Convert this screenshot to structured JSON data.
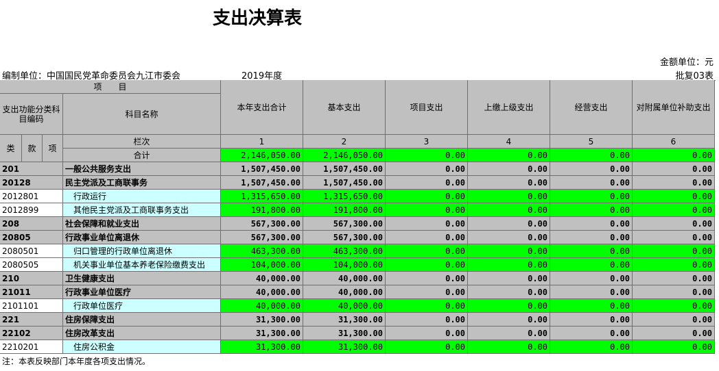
{
  "header": {
    "title": "支出决算表",
    "unit": "金额单位：元",
    "org": "编制单位：中国国民党革命委员会九江市委会",
    "year": "2019年度",
    "form_no": "批复03表"
  },
  "table": {
    "group_header": "项　　目",
    "code_header": "支出功能分类科目编码",
    "name_header": "科目名称",
    "columns": [
      "本年支出合计",
      "基本支出",
      "项目支出",
      "上缴上级支出",
      "经营支出",
      "对附属单位补助支出"
    ],
    "code_parts": [
      "类",
      "款",
      "项"
    ],
    "index_label": "栏次",
    "column_numbers": [
      "1",
      "2",
      "3",
      "4",
      "5",
      "6"
    ],
    "total": {
      "label": "合计",
      "values": [
        "2,146,050.00",
        "2,146,050.00",
        "0.00",
        "0.00",
        "0.00",
        "0.00"
      ]
    },
    "rows": [
      {
        "code": "201",
        "name": "一般公共服务支出",
        "values": [
          "1,507,450.00",
          "1,507,450.00",
          "0.00",
          "0.00",
          "0.00",
          "0.00"
        ]
      },
      {
        "code": "20128",
        "name": "民主党派及工商联事务",
        "values": [
          "1,507,450.00",
          "1,507,450.00",
          "0.00",
          "0.00",
          "0.00",
          "0.00"
        ]
      },
      {
        "code": "2012801",
        "name": "行政运行",
        "values": [
          "1,315,650.00",
          "1,315,650.00",
          "0.00",
          "0.00",
          "0.00",
          "0.00"
        ]
      },
      {
        "code": "2012899",
        "name": "其他民主党派及工商联事务支出",
        "values": [
          "191,800.00",
          "191,800.00",
          "0.00",
          "0.00",
          "0.00",
          "0.00"
        ]
      },
      {
        "code": "208",
        "name": "社会保障和就业支出",
        "values": [
          "567,300.00",
          "567,300.00",
          "0.00",
          "0.00",
          "0.00",
          "0.00"
        ]
      },
      {
        "code": "20805",
        "name": "行政事业单位离退休",
        "values": [
          "567,300.00",
          "567,300.00",
          "0.00",
          "0.00",
          "0.00",
          "0.00"
        ]
      },
      {
        "code": "2080501",
        "name": "归口管理的行政单位离退休",
        "values": [
          "463,300.00",
          "463,300.00",
          "0.00",
          "0.00",
          "0.00",
          "0.00"
        ]
      },
      {
        "code": "2080505",
        "name": "机关事业单位基本养老保险缴费支出",
        "values": [
          "104,000.00",
          "104,000.00",
          "0.00",
          "0.00",
          "0.00",
          "0.00"
        ]
      },
      {
        "code": "210",
        "name": "卫生健康支出",
        "values": [
          "40,000.00",
          "40,000.00",
          "0.00",
          "0.00",
          "0.00",
          "0.00"
        ]
      },
      {
        "code": "21011",
        "name": "行政事业单位医疗",
        "values": [
          "40,000.00",
          "40,000.00",
          "0.00",
          "0.00",
          "0.00",
          "0.00"
        ]
      },
      {
        "code": "2101101",
        "name": "行政单位医疗",
        "values": [
          "40,000.00",
          "40,000.00",
          "0.00",
          "0.00",
          "0.00",
          "0.00"
        ]
      },
      {
        "code": "221",
        "name": "住房保障支出",
        "values": [
          "31,300.00",
          "31,300.00",
          "0.00",
          "0.00",
          "0.00",
          "0.00"
        ]
      },
      {
        "code": "22102",
        "name": "住房改革支出",
        "values": [
          "31,300.00",
          "31,300.00",
          "0.00",
          "0.00",
          "0.00",
          "0.00"
        ]
      },
      {
        "code": "2210201",
        "name": "住房公积金",
        "values": [
          "31,300.00",
          "31,300.00",
          "0.00",
          "0.00",
          "0.00",
          "0.00"
        ]
      }
    ]
  },
  "footer": {
    "note": "注：本表反映部门本年度各项支出情况。"
  }
}
